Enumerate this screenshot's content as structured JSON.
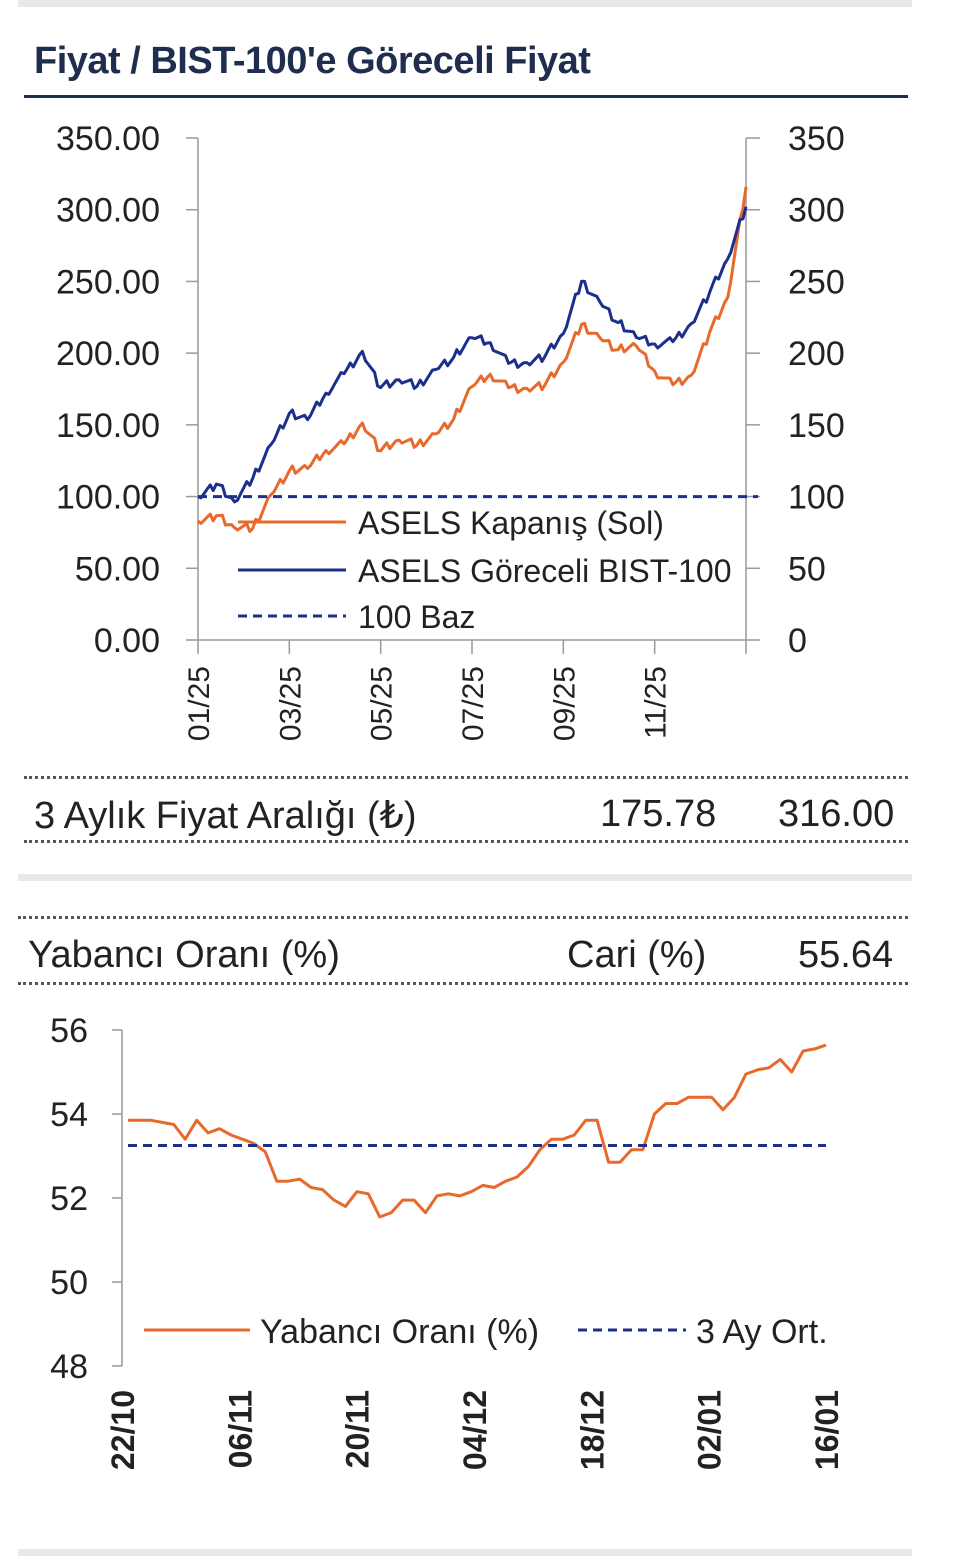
{
  "header": {
    "title": "Fiyat / BIST-100'e Göreceli Fiyat"
  },
  "price_range": {
    "label": "3 Aylık Fiyat Aralığı (₺)",
    "low": "175.78",
    "high": "316.00"
  },
  "foreign": {
    "label": "Yabancı Oranı (%)",
    "cari_label": "Cari (%)",
    "cari_value": "55.64"
  },
  "colors": {
    "orange": "#e8692c",
    "navy": "#1c2f8c",
    "title": "#1f2d4e"
  },
  "chart_data": [
    {
      "type": "line",
      "title": "",
      "x_tick_labels": [
        "01/25",
        "03/25",
        "05/25",
        "07/25",
        "09/25",
        "11/25"
      ],
      "y_left": {
        "ticks": [
          "350.00",
          "300.00",
          "250.00",
          "200.00",
          "150.00",
          "100.00",
          "50.00",
          "0.00"
        ],
        "ylim": [
          0,
          350
        ]
      },
      "y_right": {
        "ticks": [
          "350",
          "300",
          "250",
          "200",
          "150",
          "100",
          "50",
          "0"
        ],
        "ylim": [
          0,
          350
        ]
      },
      "legend": {
        "placement": "bottom-center",
        "entries": [
          "ASELS Kapanış (Sol)",
          "ASELS Göreceli BIST-100",
          "100 Baz"
        ]
      },
      "series": [
        {
          "name": "ASELS Kapanış (Sol)",
          "axis": "left",
          "color": "#e8692c",
          "dashed": false,
          "x": [
            "01/25",
            "01/25",
            "02/25",
            "02/25",
            "02/25",
            "03/25",
            "03/25",
            "04/25",
            "04/25",
            "04/25",
            "05/25",
            "05/25",
            "06/25",
            "06/25",
            "07/25",
            "07/25",
            "07/25",
            "08/25",
            "08/25",
            "08/25",
            "09/25",
            "09/25",
            "10/25",
            "10/25",
            "10/25",
            "11/25",
            "11/25",
            "11/25",
            "12/25",
            "12/25",
            "12/25"
          ],
          "values": [
            83,
            86,
            79,
            80,
            100,
            118,
            121,
            130,
            136,
            152,
            134,
            138,
            136,
            145,
            152,
            176,
            186,
            178,
            174,
            178,
            195,
            218,
            210,
            203,
            207,
            186,
            178,
            186,
            212,
            238,
            316
          ]
        },
        {
          "name": "ASELS Göreceli BIST-100",
          "axis": "right",
          "color": "#1c2f8c",
          "dashed": false,
          "x": [
            "01/25",
            "01/25",
            "02/25",
            "02/25",
            "02/25",
            "03/25",
            "03/25",
            "04/25",
            "04/25",
            "04/25",
            "05/25",
            "05/25",
            "06/25",
            "06/25",
            "07/25",
            "07/25",
            "07/25",
            "08/25",
            "08/25",
            "08/25",
            "09/25",
            "09/25",
            "10/25",
            "10/25",
            "10/25",
            "11/25",
            "11/25",
            "11/25",
            "12/25",
            "12/25",
            "12/25"
          ],
          "values": [
            100,
            108,
            97,
            115,
            135,
            158,
            155,
            170,
            185,
            202,
            178,
            180,
            177,
            190,
            195,
            210,
            208,
            195,
            192,
            198,
            215,
            248,
            235,
            222,
            213,
            205,
            208,
            222,
            240,
            265,
            302
          ]
        },
        {
          "name": "100 Baz",
          "axis": "right",
          "color": "#1c2f8c",
          "dashed": true,
          "x": [
            "01/25",
            "12/25"
          ],
          "values": [
            100,
            100
          ]
        }
      ]
    },
    {
      "type": "line",
      "title": "",
      "x_tick_labels": [
        "22/10",
        "06/11",
        "20/11",
        "04/12",
        "18/12",
        "02/01",
        "16/01"
      ],
      "y_ticks": [
        "56",
        "54",
        "52",
        "50",
        "48"
      ],
      "ylim": [
        48,
        56
      ],
      "legend": {
        "placement": "bottom",
        "entries": [
          "Yabancı Oranı (%)",
          "3 Ay Ort."
        ]
      },
      "series": [
        {
          "name": "Yabancı Oranı (%)",
          "color": "#e8692c",
          "dashed": false,
          "x": [
            "22/10",
            "23/10",
            "24/10",
            "27/10",
            "28/10",
            "29/10",
            "30/10",
            "31/10",
            "03/11",
            "04/11",
            "05/11",
            "06/11",
            "07/11",
            "10/11",
            "11/11",
            "12/11",
            "13/11",
            "14/11",
            "17/11",
            "18/11",
            "19/11",
            "20/11",
            "21/11",
            "24/11",
            "25/11",
            "26/11",
            "27/11",
            "28/11",
            "01/12",
            "02/12",
            "03/12",
            "04/12",
            "05/12",
            "08/12",
            "09/12",
            "10/12",
            "11/12",
            "12/12",
            "15/12",
            "16/12",
            "17/12",
            "18/12",
            "19/12",
            "22/12",
            "23/12",
            "24/12",
            "25/12",
            "26/12",
            "29/12",
            "30/12",
            "31/12",
            "02/01",
            "05/01",
            "06/01",
            "07/01",
            "08/01",
            "09/01",
            "12/01",
            "13/01",
            "14/01",
            "15/01",
            "16/01"
          ],
          "values": [
            53.85,
            53.85,
            53.85,
            53.8,
            53.75,
            53.4,
            53.85,
            53.55,
            53.65,
            53.5,
            53.4,
            53.3,
            53.1,
            52.4,
            52.4,
            52.45,
            52.25,
            52.2,
            51.95,
            51.8,
            52.15,
            52.1,
            51.55,
            51.65,
            51.95,
            51.95,
            51.65,
            52.05,
            52.1,
            52.05,
            52.15,
            52.3,
            52.25,
            52.4,
            52.5,
            52.75,
            53.15,
            53.4,
            53.4,
            53.5,
            53.85,
            53.85,
            52.85,
            52.85,
            53.15,
            53.15,
            54.0,
            54.25,
            54.25,
            54.4,
            54.4,
            54.4,
            54.1,
            54.4,
            54.95,
            55.05,
            55.1,
            55.3,
            55.0,
            55.5,
            55.55,
            55.64
          ]
        },
        {
          "name": "3 Ay Ort.",
          "color": "#1c2f8c",
          "dashed": true,
          "x": [
            "22/10",
            "16/01"
          ],
          "values": [
            53.25,
            53.25
          ]
        }
      ]
    }
  ]
}
